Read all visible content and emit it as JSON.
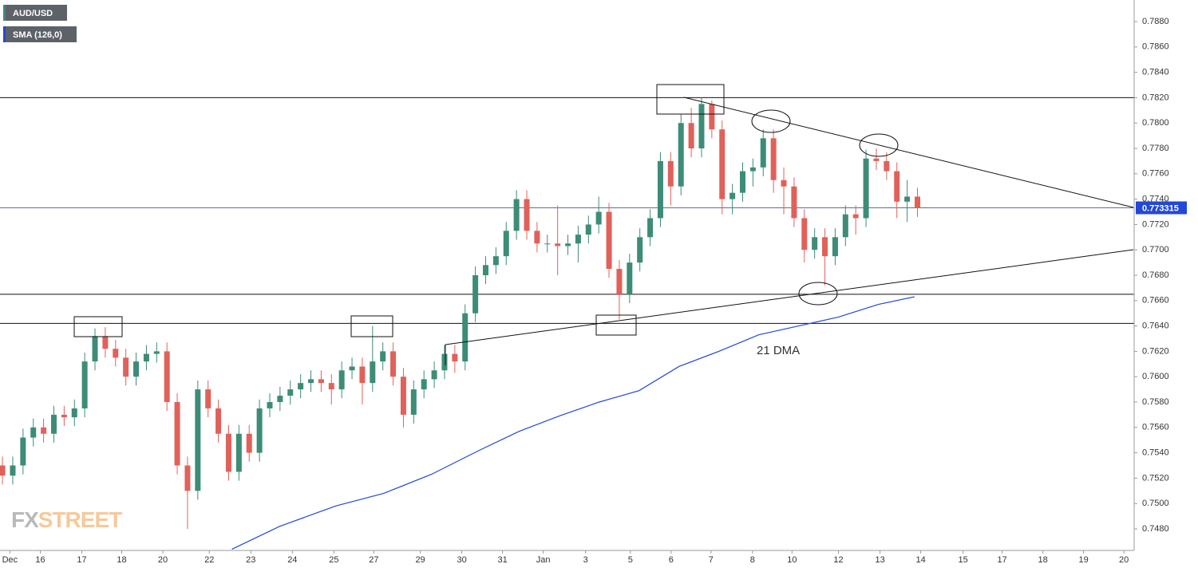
{
  "chart_data": {
    "type": "candlestick",
    "series": [
      {
        "name": "AUD/USD",
        "up_color": "#3d8c78",
        "down_color": "#e0615a",
        "candles": [
          [
            -0.1,
            0.753,
            0.7537,
            0.7515,
            0.7522
          ],
          [
            0.15,
            0.7522,
            0.7537,
            0.7515,
            0.753
          ],
          [
            0.4,
            0.753,
            0.7559,
            0.7523,
            0.7552
          ],
          [
            0.65,
            0.7552,
            0.7567,
            0.7545,
            0.756
          ],
          [
            0.9,
            0.756,
            0.7567,
            0.7548,
            0.7555
          ],
          [
            1.15,
            0.7555,
            0.7577,
            0.7548,
            0.757
          ],
          [
            1.4,
            0.757,
            0.7577,
            0.7561,
            0.7568
          ],
          [
            1.65,
            0.7568,
            0.7582,
            0.7561,
            0.7575
          ],
          [
            1.9,
            0.7575,
            0.7619,
            0.7568,
            0.7612
          ],
          [
            2.15,
            0.7612,
            0.7638,
            0.7605,
            0.7632
          ],
          [
            2.4,
            0.7632,
            0.7639,
            0.7615,
            0.7622
          ],
          [
            2.65,
            0.7622,
            0.7629,
            0.7608,
            0.7615
          ],
          [
            2.9,
            0.7615,
            0.7622,
            0.7593,
            0.76
          ],
          [
            3.15,
            0.76,
            0.7619,
            0.7593,
            0.7612
          ],
          [
            3.4,
            0.7612,
            0.7625,
            0.7605,
            0.7618
          ],
          [
            3.65,
            0.7618,
            0.7627,
            0.7611,
            0.762
          ],
          [
            3.9,
            0.762,
            0.7627,
            0.7573,
            0.758
          ],
          [
            4.15,
            0.758,
            0.7587,
            0.7523,
            0.753
          ],
          [
            4.4,
            0.753,
            0.7537,
            0.748,
            0.751
          ],
          [
            4.65,
            0.751,
            0.7597,
            0.7503,
            0.759
          ],
          [
            4.9,
            0.759,
            0.7597,
            0.7568,
            0.7575
          ],
          [
            5.15,
            0.7575,
            0.7582,
            0.7548,
            0.7555
          ],
          [
            5.4,
            0.7555,
            0.7562,
            0.7518,
            0.7525
          ],
          [
            5.65,
            0.7525,
            0.7562,
            0.7518,
            0.7555
          ],
          [
            5.9,
            0.7555,
            0.7562,
            0.7533,
            0.754
          ],
          [
            6.15,
            0.754,
            0.7582,
            0.7533,
            0.7575
          ],
          [
            6.4,
            0.7575,
            0.7587,
            0.7568,
            0.758
          ],
          [
            6.65,
            0.758,
            0.7592,
            0.7573,
            0.7585
          ],
          [
            6.9,
            0.7585,
            0.7597,
            0.7578,
            0.759
          ],
          [
            7.15,
            0.759,
            0.7602,
            0.7583,
            0.7595
          ],
          [
            7.4,
            0.7595,
            0.7605,
            0.7588,
            0.7598
          ],
          [
            7.65,
            0.7598,
            0.7605,
            0.7588,
            0.7595
          ],
          [
            7.9,
            0.7595,
            0.7602,
            0.7578,
            0.759
          ],
          [
            8.15,
            0.759,
            0.7612,
            0.7583,
            0.7605
          ],
          [
            8.4,
            0.7605,
            0.7615,
            0.7598,
            0.7608
          ],
          [
            8.65,
            0.7608,
            0.7615,
            0.7578,
            0.7595
          ],
          [
            8.9,
            0.7595,
            0.764,
            0.7588,
            0.7612
          ],
          [
            9.15,
            0.7612,
            0.7627,
            0.7605,
            0.762
          ],
          [
            9.4,
            0.762,
            0.7627,
            0.7593,
            0.76
          ],
          [
            9.65,
            0.76,
            0.7607,
            0.756,
            0.757
          ],
          [
            9.9,
            0.757,
            0.7597,
            0.7563,
            0.759
          ],
          [
            10.15,
            0.759,
            0.7605,
            0.7583,
            0.7598
          ],
          [
            10.4,
            0.7598,
            0.7612,
            0.7591,
            0.7605
          ],
          [
            10.65,
            0.7605,
            0.7625,
            0.7598,
            0.7618
          ],
          [
            10.9,
            0.7618,
            0.7625,
            0.7603,
            0.7612
          ],
          [
            11.15,
            0.7612,
            0.7657,
            0.7605,
            0.765
          ],
          [
            11.4,
            0.765,
            0.7687,
            0.7643,
            0.768
          ],
          [
            11.65,
            0.768,
            0.7695,
            0.7673,
            0.7688
          ],
          [
            11.9,
            0.7688,
            0.7702,
            0.7681,
            0.7695
          ],
          [
            12.15,
            0.7695,
            0.7722,
            0.7688,
            0.7715
          ],
          [
            12.4,
            0.7715,
            0.7747,
            0.7708,
            0.774
          ],
          [
            12.65,
            0.774,
            0.7747,
            0.7708,
            0.7715
          ],
          [
            12.9,
            0.7715,
            0.7722,
            0.7698,
            0.7705
          ],
          [
            13.15,
            0.7705,
            0.7712,
            0.7698,
            0.7705
          ],
          [
            13.4,
            0.7705,
            0.7735,
            0.768,
            0.7703
          ],
          [
            13.65,
            0.7703,
            0.7712,
            0.7696,
            0.7705
          ],
          [
            13.9,
            0.7705,
            0.7719,
            0.769,
            0.7712
          ],
          [
            14.15,
            0.7712,
            0.7727,
            0.7705,
            0.772
          ],
          [
            14.4,
            0.772,
            0.7742,
            0.7713,
            0.773
          ],
          [
            14.65,
            0.773,
            0.7737,
            0.7678,
            0.7685
          ],
          [
            14.9,
            0.7685,
            0.7692,
            0.7645,
            0.7665
          ],
          [
            15.15,
            0.7665,
            0.7697,
            0.7658,
            0.769
          ],
          [
            15.4,
            0.769,
            0.7717,
            0.7683,
            0.771
          ],
          [
            15.65,
            0.771,
            0.7732,
            0.7703,
            0.7725
          ],
          [
            15.9,
            0.7725,
            0.7777,
            0.7718,
            0.777
          ],
          [
            16.15,
            0.777,
            0.7777,
            0.7735,
            0.775
          ],
          [
            16.4,
            0.775,
            0.7807,
            0.7743,
            0.78
          ],
          [
            16.65,
            0.78,
            0.7812,
            0.7773,
            0.778
          ],
          [
            16.9,
            0.778,
            0.782,
            0.7773,
            0.7815
          ],
          [
            17.15,
            0.7815,
            0.7818,
            0.7788,
            0.7795
          ],
          [
            17.4,
            0.7795,
            0.7802,
            0.7728,
            0.774
          ],
          [
            17.65,
            0.774,
            0.7752,
            0.7728,
            0.7745
          ],
          [
            17.9,
            0.7745,
            0.7769,
            0.7738,
            0.7762
          ],
          [
            18.15,
            0.7762,
            0.7772,
            0.775,
            0.7765
          ],
          [
            18.4,
            0.7765,
            0.7795,
            0.7758,
            0.7788
          ],
          [
            18.65,
            0.7788,
            0.7795,
            0.7745,
            0.7755
          ],
          [
            18.9,
            0.7755,
            0.7765,
            0.7728,
            0.775
          ],
          [
            19.15,
            0.775,
            0.7757,
            0.7718,
            0.7725
          ],
          [
            19.4,
            0.7725,
            0.7732,
            0.769,
            0.77
          ],
          [
            19.65,
            0.77,
            0.7717,
            0.7693,
            0.771
          ],
          [
            19.9,
            0.771,
            0.7717,
            0.7672,
            0.7695
          ],
          [
            20.15,
            0.7695,
            0.7717,
            0.7688,
            0.771
          ],
          [
            20.4,
            0.771,
            0.7735,
            0.7703,
            0.7728
          ],
          [
            20.65,
            0.7728,
            0.7735,
            0.7712,
            0.7725
          ],
          [
            20.9,
            0.7725,
            0.7779,
            0.7718,
            0.7772
          ],
          [
            21.15,
            0.7772,
            0.778,
            0.7763,
            0.777
          ],
          [
            21.4,
            0.777,
            0.7777,
            0.7755,
            0.7762
          ],
          [
            21.65,
            0.7762,
            0.7769,
            0.7725,
            0.7738
          ],
          [
            21.9,
            0.7738,
            0.7755,
            0.7722,
            0.7742
          ],
          [
            22.15,
            0.7742,
            0.7749,
            0.7726,
            0.7733
          ]
        ]
      },
      {
        "name": "SMA (126,0)",
        "color": "#2447d8",
        "x": [
          5.48,
          6.64,
          8.0,
          9.17,
          10.33,
          11.5,
          12.47,
          13.44,
          14.41,
          15.38,
          16.35,
          17.32,
          18.29,
          19.26,
          20.23,
          21.2,
          22.08
        ],
        "values": [
          0.7464,
          0.7482,
          0.7498,
          0.7508,
          0.7523,
          0.7542,
          0.7557,
          0.7569,
          0.758,
          0.7589,
          0.7608,
          0.762,
          0.7633,
          0.764,
          0.7647,
          0.7657,
          0.7663
        ]
      }
    ],
    "xlim": [
      -0.16,
      27.42
    ],
    "xticks": [
      {
        "value": 0.08,
        "label": "Dec"
      },
      {
        "value": 0.82,
        "label": "16"
      },
      {
        "value": 1.83,
        "label": "17"
      },
      {
        "value": 2.8,
        "label": "18"
      },
      {
        "value": 3.8,
        "label": "20"
      },
      {
        "value": 4.93,
        "label": "22"
      },
      {
        "value": 5.94,
        "label": "23"
      },
      {
        "value": 6.95,
        "label": "24"
      },
      {
        "value": 7.96,
        "label": "25"
      },
      {
        "value": 8.93,
        "label": "27"
      },
      {
        "value": 10.06,
        "label": "29"
      },
      {
        "value": 11.07,
        "label": "30"
      },
      {
        "value": 12.06,
        "label": "31"
      },
      {
        "value": 13.05,
        "label": "Jan"
      },
      {
        "value": 14.08,
        "label": "3"
      },
      {
        "value": 15.17,
        "label": "5"
      },
      {
        "value": 16.16,
        "label": "6"
      },
      {
        "value": 17.13,
        "label": "7"
      },
      {
        "value": 18.14,
        "label": "8"
      },
      {
        "value": 19.1,
        "label": "10"
      },
      {
        "value": 20.23,
        "label": "12"
      },
      {
        "value": 21.24,
        "label": "13"
      },
      {
        "value": 22.23,
        "label": "14"
      },
      {
        "value": 23.26,
        "label": "15"
      },
      {
        "value": 24.21,
        "label": "17"
      },
      {
        "value": 25.2,
        "label": "18"
      },
      {
        "value": 26.19,
        "label": "19"
      },
      {
        "value": 27.17,
        "label": "20"
      }
    ],
    "ylim": [
      0.7463,
      0.7897
    ],
    "yticks": [
      {
        "value": 0.748,
        "label": "0.7480"
      },
      {
        "value": 0.75,
        "label": "0.7500"
      },
      {
        "value": 0.752,
        "label": "0.7520"
      },
      {
        "value": 0.754,
        "label": "0.7540"
      },
      {
        "value": 0.756,
        "label": "0.7560"
      },
      {
        "value": 0.758,
        "label": "0.7580"
      },
      {
        "value": 0.76,
        "label": "0.7600"
      },
      {
        "value": 0.762,
        "label": "0.7620"
      },
      {
        "value": 0.764,
        "label": "0.7640"
      },
      {
        "value": 0.766,
        "label": "0.7660"
      },
      {
        "value": 0.768,
        "label": "0.7680"
      },
      {
        "value": 0.77,
        "label": "0.7700"
      },
      {
        "value": 0.772,
        "label": "0.7720"
      },
      {
        "value": 0.774,
        "label": "0.7740"
      },
      {
        "value": 0.776,
        "label": "0.7760"
      },
      {
        "value": 0.778,
        "label": "0.7780"
      },
      {
        "value": 0.78,
        "label": "0.7800"
      },
      {
        "value": 0.782,
        "label": "0.7820"
      },
      {
        "value": 0.784,
        "label": "0.7840"
      },
      {
        "value": 0.786,
        "label": "0.7860"
      },
      {
        "value": 0.788,
        "label": "0.7880"
      }
    ],
    "grid": true,
    "levels": [
      0.782,
      0.7665,
      0.7642
    ],
    "last_price": 0.773315,
    "annotation": "21 DMA",
    "watermark": [
      "FX",
      "STREET"
    ]
  }
}
